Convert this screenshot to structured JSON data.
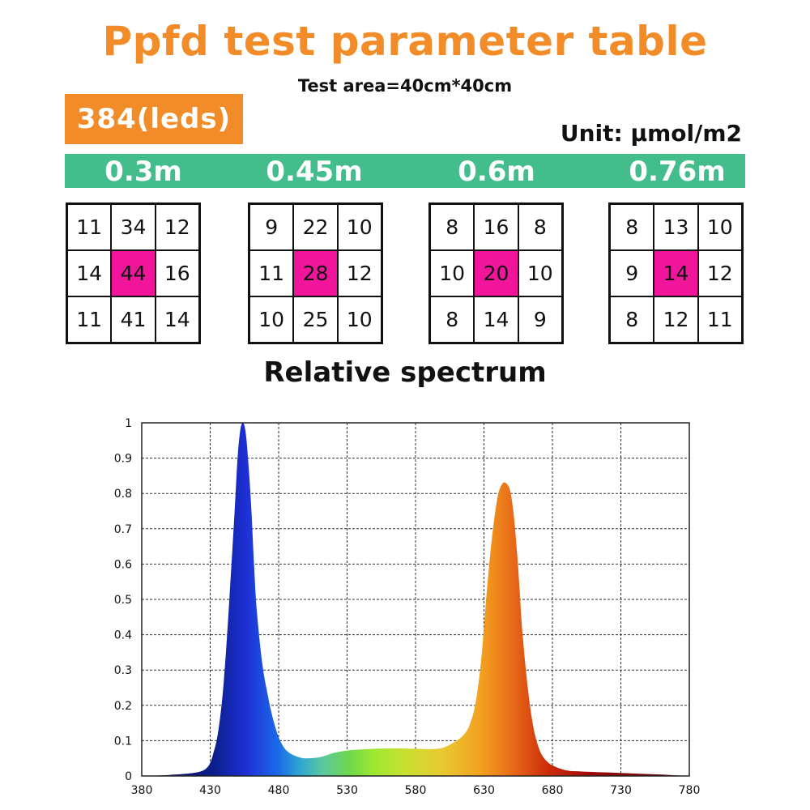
{
  "header": {
    "title": "Ppfd test parameter table",
    "subtitle": "Test area=40cm*40cm",
    "badge": "384(leds)",
    "unit": "Unit: μmol/m2"
  },
  "distances": [
    "0.3m",
    "0.45m",
    "0.6m",
    "0.76m"
  ],
  "grids": [
    {
      "cells": [
        "11",
        "34",
        "12",
        "14",
        "44",
        "16",
        "11",
        "41",
        "14"
      ]
    },
    {
      "cells": [
        "9",
        "22",
        "10",
        "11",
        "28",
        "12",
        "10",
        "25",
        "10"
      ]
    },
    {
      "cells": [
        "8",
        "16",
        "8",
        "10",
        "20",
        "10",
        "8",
        "14",
        "9"
      ]
    },
    {
      "cells": [
        "8",
        "13",
        "10",
        "9",
        "14",
        "12",
        "8",
        "12",
        "11"
      ]
    }
  ],
  "colors": {
    "title": "#F28C28",
    "band": "#44BD8C",
    "center_highlight": "#F0159A"
  },
  "chart_data": {
    "type": "area",
    "title": "Relative spectrum",
    "xlabel": "",
    "ylabel": "",
    "xlim": [
      380,
      780
    ],
    "ylim": [
      0,
      1
    ],
    "xticks": [
      "380",
      "430",
      "480",
      "530",
      "580",
      "630",
      "680",
      "730",
      "780"
    ],
    "yticks": [
      "0",
      "0.1",
      "0.2",
      "0.3",
      "0.4",
      "0.5",
      "0.6",
      "0.7",
      "0.8",
      "0.9",
      "1"
    ],
    "grid": true,
    "series": [
      {
        "x": [
          380,
          400,
          420,
          428,
          432,
          436,
          440,
          444,
          448,
          450,
          452,
          454,
          456,
          458,
          460,
          462,
          464,
          468,
          472,
          476,
          480,
          484,
          488,
          492,
          496,
          500,
          510,
          520,
          530,
          540,
          550,
          560,
          570,
          580,
          590,
          600,
          610,
          616,
          620,
          624,
          628,
          632,
          636,
          640,
          644,
          648,
          650,
          652,
          654,
          656,
          658,
          662,
          666,
          670,
          674,
          680,
          690,
          700,
          720,
          740,
          760,
          780
        ],
        "y": [
          0.0,
          0.003,
          0.01,
          0.025,
          0.06,
          0.13,
          0.27,
          0.5,
          0.76,
          0.9,
          0.98,
          1.0,
          0.97,
          0.88,
          0.76,
          0.6,
          0.47,
          0.32,
          0.23,
          0.16,
          0.11,
          0.08,
          0.065,
          0.057,
          0.052,
          0.05,
          0.053,
          0.065,
          0.072,
          0.075,
          0.077,
          0.078,
          0.078,
          0.077,
          0.076,
          0.08,
          0.1,
          0.12,
          0.15,
          0.21,
          0.33,
          0.52,
          0.68,
          0.79,
          0.83,
          0.82,
          0.79,
          0.73,
          0.64,
          0.53,
          0.41,
          0.25,
          0.14,
          0.08,
          0.05,
          0.03,
          0.016,
          0.013,
          0.01,
          0.007,
          0.004,
          0.0
        ]
      }
    ]
  }
}
